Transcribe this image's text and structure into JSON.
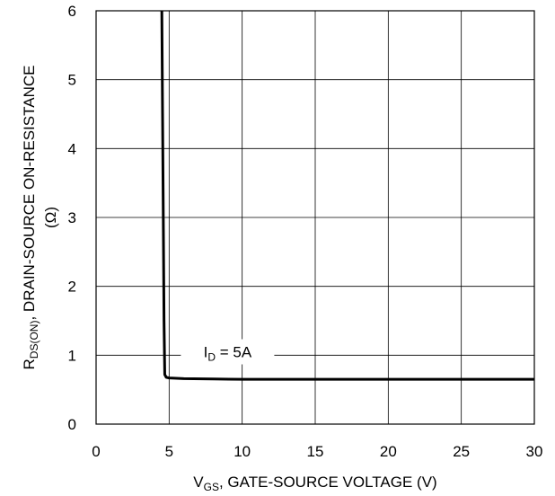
{
  "chart_data": {
    "type": "line",
    "xlabel": {
      "prefix": "V",
      "subscript": "GS",
      "suffix": ", GATE-SOURCE VOLTAGE (V)"
    },
    "ylabel": {
      "prefix": "R",
      "subscript": "DS(ON)",
      "suffix": ", DRAIN-SOURCE ON-RESISTANCE",
      "line2": "(Ω)"
    },
    "xlim": [
      0,
      30
    ],
    "ylim": [
      0,
      6
    ],
    "x_ticks": [
      0,
      5,
      10,
      15,
      20,
      25,
      30
    ],
    "y_ticks": [
      0,
      1,
      2,
      3,
      4,
      5,
      6
    ],
    "grid": true,
    "series": [
      {
        "x": [
          4.5,
          4.55,
          4.6,
          4.65,
          4.7,
          4.8,
          5.0,
          6.0,
          8.0,
          10.0,
          15.0,
          20.0,
          25.0,
          30.0
        ],
        "values": [
          6.0,
          4.5,
          3.0,
          1.5,
          0.72,
          0.68,
          0.67,
          0.66,
          0.655,
          0.65,
          0.65,
          0.65,
          0.65,
          0.65
        ]
      }
    ],
    "annotations": [
      {
        "text_prefix": "I",
        "text_subscript": "D",
        "text_suffix": " = 5A",
        "x": 9.0,
        "y": 1.05
      }
    ]
  },
  "colors": {
    "curve": "#000000",
    "grid": "#000000",
    "text": "#000000",
    "background": "#ffffff"
  }
}
